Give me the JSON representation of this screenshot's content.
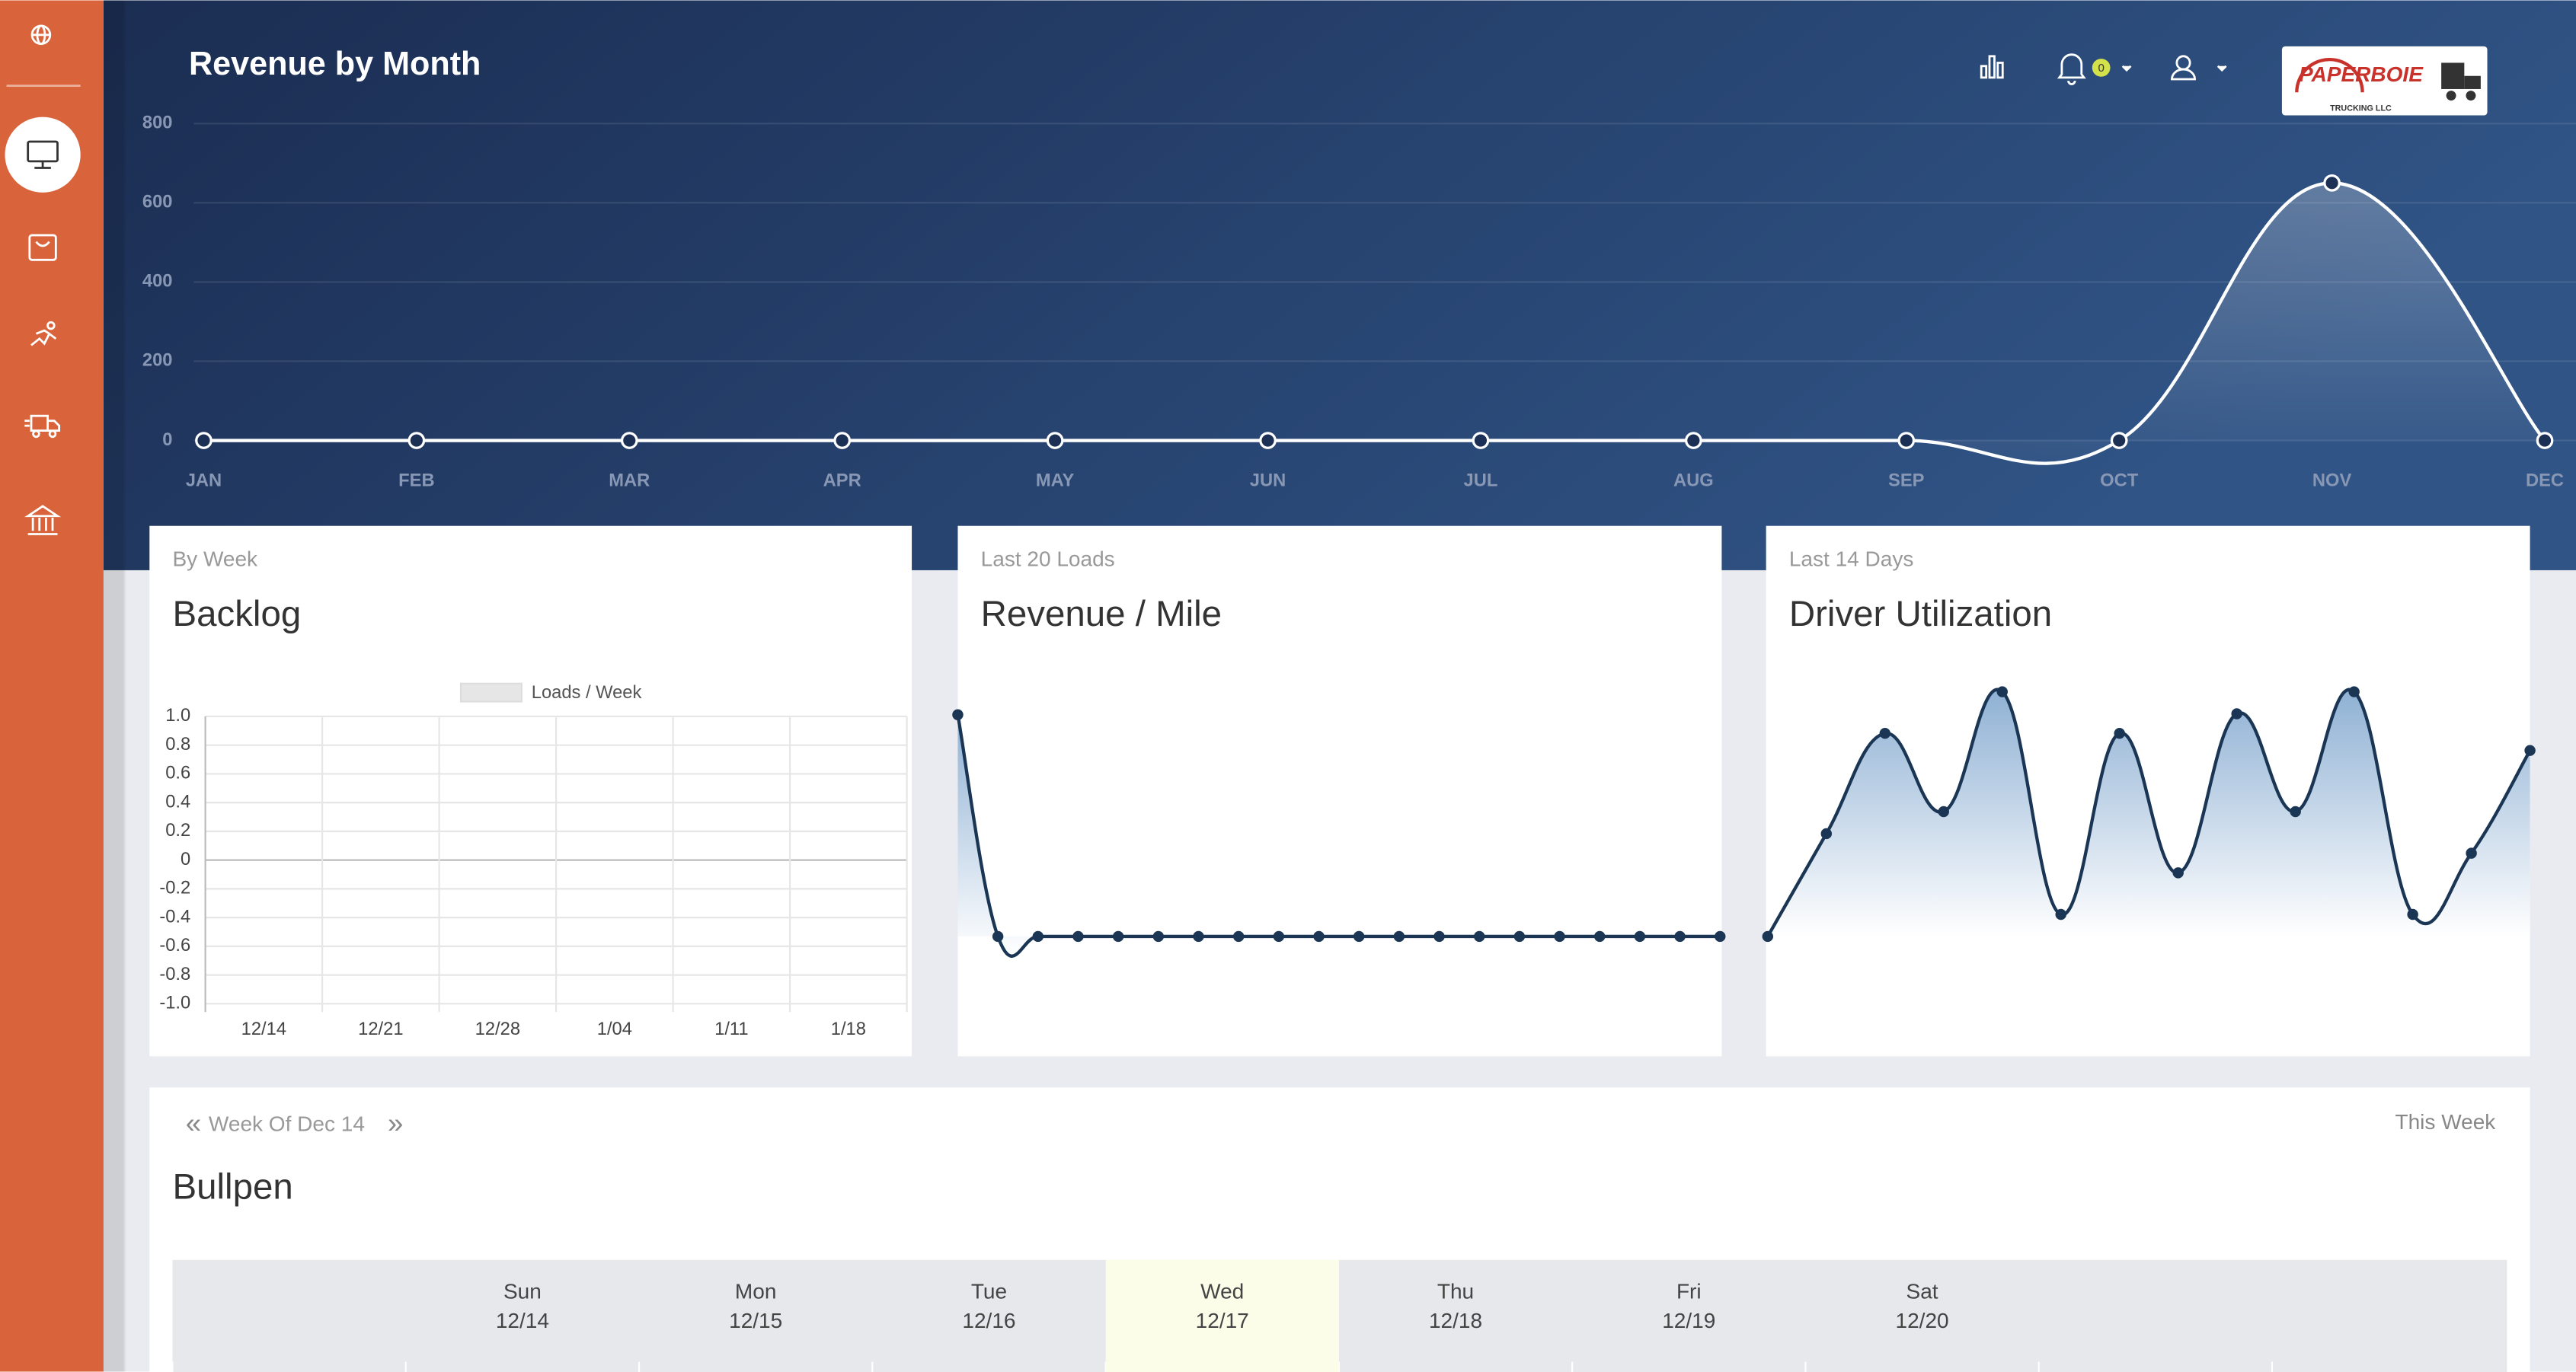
{
  "header": {
    "notification_count": "0",
    "logo_name": "PAPERBOIE",
    "logo_tagline": "TRUCKING LLC"
  },
  "chart_data": [
    {
      "type": "line",
      "title": "Revenue by Month",
      "categories": [
        "JAN",
        "FEB",
        "MAR",
        "APR",
        "MAY",
        "JUN",
        "JUL",
        "AUG",
        "SEP",
        "OCT",
        "NOV",
        "DEC"
      ],
      "series": [
        {
          "name": "Revenue",
          "color": "#ffffff",
          "values": [
            0,
            0,
            0,
            0,
            0,
            0,
            0,
            0,
            0,
            0,
            650,
            0
          ]
        }
      ],
      "ylim": [
        0,
        800
      ],
      "yticks": [
        0,
        200,
        400,
        600,
        800
      ],
      "grid": true,
      "fill": true
    },
    {
      "type": "line",
      "subtitle": "By Week",
      "title": "Backlog",
      "categories": [
        "12/14",
        "12/21",
        "12/28",
        "1/04",
        "1/11",
        "1/18"
      ],
      "series": [
        {
          "name": "Loads / Week",
          "color": "#e6e6e6",
          "values": [
            null,
            null,
            null,
            null,
            null,
            null
          ]
        }
      ],
      "ylim": [
        -1,
        1
      ],
      "yticks": [
        {
          "value": 1,
          "label": "1.0"
        },
        {
          "value": 0.8,
          "label": "0.8"
        },
        {
          "value": 0.6,
          "label": "0.6"
        },
        {
          "value": 0.4,
          "label": "0.4"
        },
        {
          "value": 0.2,
          "label": "0.2"
        },
        0,
        {
          "value": -0.2,
          "label": "-0.2"
        },
        {
          "value": -0.4,
          "label": "-0.4"
        },
        {
          "value": -0.6,
          "label": "-0.6"
        },
        {
          "value": -0.8,
          "label": "-0.8"
        },
        {
          "value": -1,
          "label": "-1.0"
        }
      ],
      "grid": true,
      "legend": "top"
    },
    {
      "type": "line",
      "subtitle": "Last 20 Loads",
      "title": "Revenue / Mile",
      "series": [
        {
          "color": "#1b3654",
          "values": [
            1,
            0,
            0,
            0,
            0,
            0,
            0,
            0,
            0,
            0,
            0,
            0,
            0,
            0,
            0,
            0,
            0,
            0,
            0,
            0
          ]
        }
      ],
      "fill": true
    },
    {
      "type": "line",
      "subtitle": "Last 14 Days",
      "title": "Driver Utilization",
      "series": [
        {
          "color": "#1b3654",
          "values": [
            0,
            42,
            83,
            51,
            100,
            9,
            83,
            26,
            91,
            51,
            100,
            9,
            34,
            76
          ]
        }
      ],
      "fill": true
    }
  ],
  "bullpen": {
    "prev": "«",
    "week": "Week Of Dec 14",
    "next": "»",
    "this_week": "This Week",
    "title": "Bullpen",
    "days": [
      {
        "day": "Sun",
        "date": "12/14"
      },
      {
        "day": "Mon",
        "date": "12/15"
      },
      {
        "day": "Tue",
        "date": "12/16"
      },
      {
        "day": "Wed",
        "date": "12/17"
      },
      {
        "day": "Thu",
        "date": "12/18"
      },
      {
        "day": "Fri",
        "date": "12/19"
      },
      {
        "day": "Sat",
        "date": "12/20"
      }
    ],
    "highlight": 3
  }
}
